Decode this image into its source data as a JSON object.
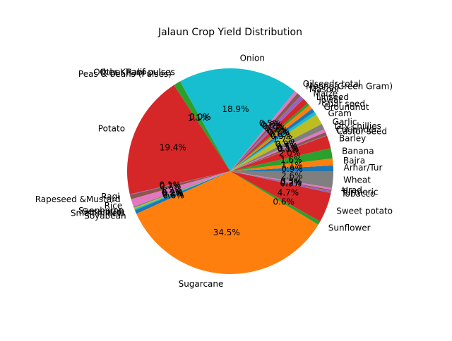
{
  "chart_data": {
    "type": "pie",
    "title": "Jalaun Crop Yield Distribution",
    "legend": "none",
    "slices": [
      {
        "label": "Arhar/Tur",
        "value": 0.9,
        "pct_label": "0.9%",
        "color": "#1f77b4"
      },
      {
        "label": "Bajra",
        "value": 1.1,
        "pct_label": "1.1%",
        "color": "#ff7f0e"
      },
      {
        "label": "Banana",
        "value": 1.6,
        "pct_label": "1.6%",
        "color": "#2ca02c"
      },
      {
        "label": "Barley",
        "value": 2.0,
        "pct_label": "2.0%",
        "color": "#d62728"
      },
      {
        "label": "Castor seed",
        "value": 0.1,
        "pct_label": "0.1%",
        "color": "#9467bd"
      },
      {
        "label": "Coriander",
        "value": 0.5,
        "pct_label": "0.5%",
        "color": "#8c564b"
      },
      {
        "label": "Dry chillies",
        "value": 0.5,
        "pct_label": "0.5%",
        "color": "#e377c2"
      },
      {
        "label": "Garlic",
        "value": 0.9,
        "pct_label": "0.9%",
        "color": "#7f7f7f"
      },
      {
        "label": "Gram",
        "value": 1.7,
        "pct_label": "1.7%",
        "color": "#bcbd22"
      },
      {
        "label": "Groundnut",
        "value": 0.5,
        "pct_label": "0.5%",
        "color": "#17becf"
      },
      {
        "label": "Guar seed",
        "value": 0.6,
        "pct_label": "0.6%",
        "color": "#1f77b4"
      },
      {
        "label": "Jowar",
        "value": 0.7,
        "pct_label": "0.7%",
        "color": "#ff7f0e"
      },
      {
        "label": "Linseed",
        "value": 0.4,
        "pct_label": "0.4%",
        "color": "#2ca02c"
      },
      {
        "label": "Maize",
        "value": 0.9,
        "pct_label": "0.9%",
        "color": "#d62728"
      },
      {
        "label": "Masoor",
        "value": 0.7,
        "pct_label": "0.7%",
        "color": "#9467bd"
      },
      {
        "label": "Moong(Green Gram)",
        "value": 0.6,
        "pct_label": "0.6%",
        "color": "#8c564b"
      },
      {
        "label": "Oilseeds total",
        "value": 0.5,
        "pct_label": "0.5%",
        "color": "#e377c2"
      },
      {
        "label": "Onion",
        "value": 18.9,
        "pct_label": "18.9%",
        "color": "#17becf"
      },
      {
        "label": "Other Kharif pulses",
        "value": 0.0,
        "pct_label": "0.0%",
        "color": "#1f77b4"
      },
      {
        "label": "Other Rabi pulses",
        "value": 0.0,
        "pct_label": "0.0%",
        "color": "#ff7f0e"
      },
      {
        "label": "Peas & beans (Pulses)",
        "value": 1.1,
        "pct_label": "1.1%",
        "color": "#2ca02c"
      },
      {
        "label": "Potato",
        "value": 19.4,
        "pct_label": "19.4%",
        "color": "#d62728"
      },
      {
        "label": "Ragi",
        "value": 0.1,
        "pct_label": "0.1%",
        "color": "#9467bd"
      },
      {
        "label": "Rapeseed &Mustard",
        "value": 0.7,
        "pct_label": "0.7%",
        "color": "#8c564b"
      },
      {
        "label": "Rice",
        "value": 1.2,
        "pct_label": "1.2%",
        "color": "#e377c2"
      },
      {
        "label": "Sannhamp",
        "value": 0.2,
        "pct_label": "0.2%",
        "color": "#7f7f7f"
      },
      {
        "label": "Sesamum",
        "value": 0.2,
        "pct_label": "0.2%",
        "color": "#bcbd22"
      },
      {
        "label": "Small millets",
        "value": 0.2,
        "pct_label": "0.2%",
        "color": "#17becf"
      },
      {
        "label": "Soyabean",
        "value": 0.6,
        "pct_label": "0.6%",
        "color": "#1f77b4"
      },
      {
        "label": "Sugarcane",
        "value": 34.5,
        "pct_label": "34.5%",
        "color": "#ff7f0e"
      },
      {
        "label": "Sunflower",
        "value": 0.6,
        "pct_label": "0.6%",
        "color": "#2ca02c"
      },
      {
        "label": "Sweet potato",
        "value": 4.7,
        "pct_label": "4.7%",
        "color": "#d62728"
      },
      {
        "label": "Tobacco",
        "value": 0.3,
        "pct_label": "0.3%",
        "color": "#9467bd"
      },
      {
        "label": "Turmeric",
        "value": 0.2,
        "pct_label": "0.2%",
        "color": "#8c564b"
      },
      {
        "label": "Urad",
        "value": 0.3,
        "pct_label": "0.3%",
        "color": "#e377c2"
      },
      {
        "label": "Wheat",
        "value": 2.6,
        "pct_label": "2.6%",
        "color": "#7f7f7f"
      }
    ]
  }
}
